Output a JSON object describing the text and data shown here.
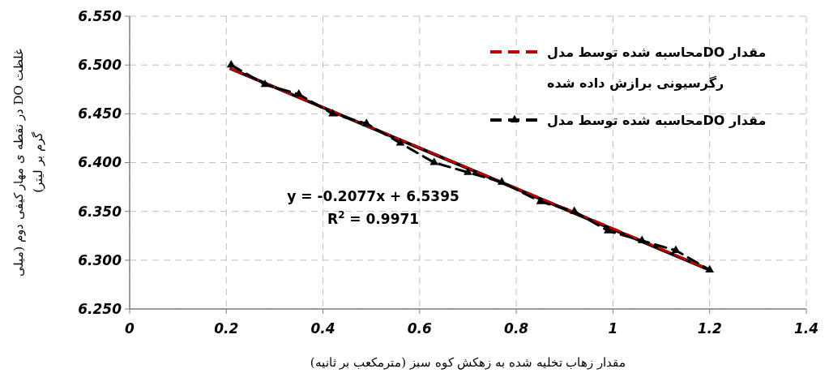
{
  "chart_data": {
    "type": "line",
    "xlabel": "مقدار زهاب تخلیه شده به زهکش کوه سبز (مترمکعب بر ثانیه)",
    "ylabel": "غلظت DO در نقطه ی مهار کیفی دوم (میلی گرم بر لیتر)",
    "xlim": [
      0,
      1.4
    ],
    "xticks": [
      0,
      0.2,
      0.4,
      0.6,
      0.8,
      1,
      1.2,
      1.4
    ],
    "ylim": [
      6.25,
      6.55
    ],
    "yticks": [
      {
        "value": 6.25,
        "label": "6.250"
      },
      {
        "value": 6.3,
        "label": "6.300"
      },
      {
        "value": 6.35,
        "label": "6.350"
      },
      {
        "value": 6.4,
        "label": "6.400"
      },
      {
        "value": 6.45,
        "label": "6.450"
      },
      {
        "value": 6.5,
        "label": "6.500"
      },
      {
        "value": 6.55,
        "label": "6.550"
      }
    ],
    "grid": true,
    "legend": "top right",
    "annotations": [
      "y = -0.2077x + 6.5395\nR$^{2}$ = 0.9971"
    ],
    "series": [
      {
        "color": "#000000",
        "line_style": "solid",
        "x": [
          0.21,
          1.2
        ],
        "values": [
          6.496,
          6.29
        ]
      },
      {
        "name": "مقدار DOمحاسبه شده توسط مدل رگرسیونی برازش داده شده",
        "color": "#c00000",
        "line_style": "dashed",
        "x": [
          0.21,
          0.49,
          0.77,
          1.06,
          1.2
        ],
        "values": [
          6.496,
          6.438,
          6.38,
          6.32,
          6.29
        ]
      },
      {
        "name": "مقدار DOمحاسبه شده توسط مدل",
        "color": "#000000",
        "line_style": "dashed",
        "marker": "triangle",
        "x": [
          0.21,
          0.28,
          0.35,
          0.42,
          0.49,
          0.56,
          0.63,
          0.7,
          0.77,
          0.85,
          0.92,
          0.99,
          1.06,
          1.13,
          1.2
        ],
        "values": [
          6.5,
          6.48,
          6.47,
          6.45,
          6.44,
          6.42,
          6.4,
          6.39,
          6.38,
          6.36,
          6.35,
          6.33,
          6.32,
          6.31,
          6.29
        ]
      }
    ]
  }
}
